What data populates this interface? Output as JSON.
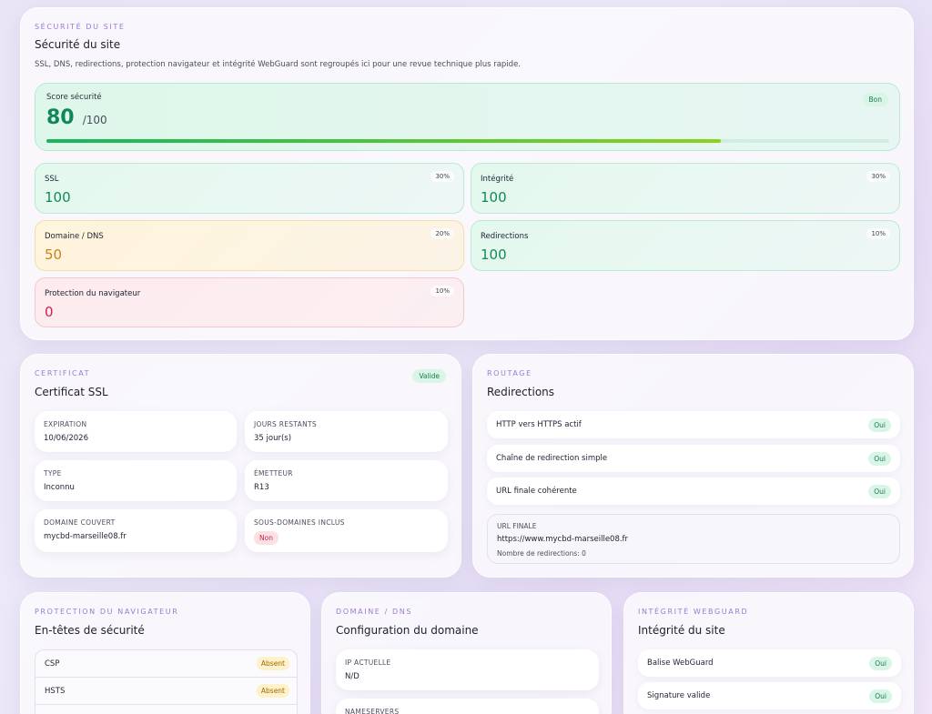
{
  "security": {
    "eyebrow": "SÉCURITÉ DU SITE",
    "title": "Sécurité du site",
    "subtitle": "SSL, DNS, redirections, protection navigateur et intégrité WebGuard sont regroupés ici pour une revue technique plus rapide.",
    "score": {
      "label": "Score sécurité",
      "value": "80",
      "max": "/100",
      "status": "Bon",
      "progress_percent": 80
    },
    "metrics": [
      {
        "label": "SSL",
        "value": "100",
        "weight": "30%"
      },
      {
        "label": "Intégrité",
        "value": "100",
        "weight": "30%"
      },
      {
        "label": "Domaine / DNS",
        "value": "50",
        "weight": "20%"
      },
      {
        "label": "Redirections",
        "value": "100",
        "weight": "10%"
      },
      {
        "label": "Protection du navigateur",
        "value": "0",
        "weight": "10%"
      }
    ]
  },
  "certificate": {
    "eyebrow": "CERTIFICAT",
    "title": "Certificat SSL",
    "status": "Valide",
    "fields": [
      {
        "key": "EXPIRATION",
        "value": "10/06/2026"
      },
      {
        "key": "JOURS RESTANTS",
        "value": "35 jour(s)"
      },
      {
        "key": "TYPE",
        "value": "Inconnu"
      },
      {
        "key": "ÉMETTEUR",
        "value": "R13"
      },
      {
        "key": "DOMAINE COUVERT",
        "value": "mycbd-marseille08.fr"
      },
      {
        "key": "SOUS-DOMAINES INCLUS",
        "value": "Non"
      }
    ]
  },
  "routing": {
    "eyebrow": "ROUTAGE",
    "title": "Redirections",
    "checks": [
      {
        "label": "HTTP vers HTTPS actif",
        "status": "Oui"
      },
      {
        "label": "Chaîne de redirection simple",
        "status": "Oui"
      },
      {
        "label": "URL finale cohérente",
        "status": "Oui"
      }
    ],
    "final_url_label": "URL FINALE",
    "final_url": "https://www.mycbd-marseille08.fr",
    "redirect_count": "Nombre de redirections: 0"
  },
  "browser_protection": {
    "eyebrow": "PROTECTION DU NAVIGATEUR",
    "title": "En-têtes de sécurité",
    "headers": [
      {
        "label": "CSP",
        "status": "Absent"
      },
      {
        "label": "HSTS",
        "status": "Absent"
      }
    ]
  },
  "dns": {
    "eyebrow": "DOMAINE / DNS",
    "title": "Configuration du domaine",
    "fields": [
      {
        "key": "IP ACTUELLE",
        "value": "N/D"
      },
      {
        "key": "NAMESERVERS",
        "value": ""
      }
    ]
  },
  "webguard": {
    "eyebrow": "INTÉGRITÉ WEBGUARD",
    "title": "Intégrité du site",
    "checks": [
      {
        "label": "Balise WebGuard",
        "status": "Oui"
      },
      {
        "label": "Signature valide",
        "status": "Oui"
      }
    ]
  }
}
